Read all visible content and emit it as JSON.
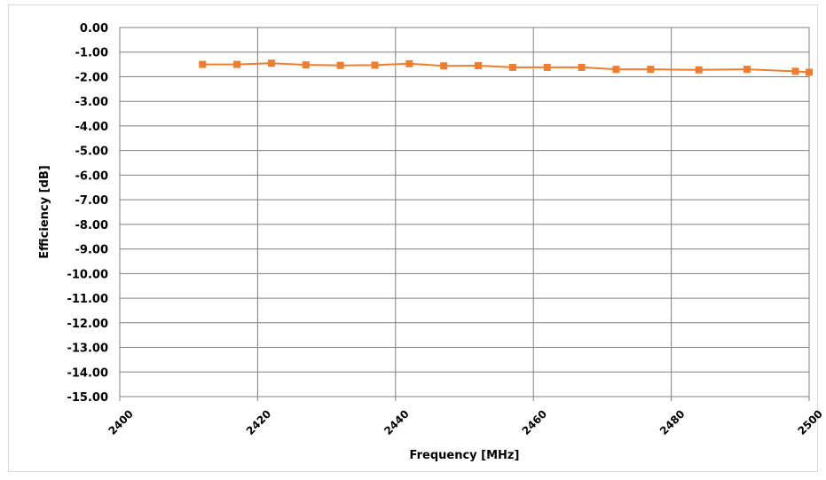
{
  "chart_data": {
    "type": "line",
    "title": "",
    "xlabel": "Frequency [MHz]",
    "ylabel": "Efficiency [dB]",
    "xlim": [
      2400,
      2500
    ],
    "ylim": [
      -15,
      0
    ],
    "x_ticks": [
      2400,
      2420,
      2440,
      2460,
      2480,
      2500
    ],
    "x_tick_labels": [
      "2400",
      "2420",
      "2440",
      "2460",
      "2480",
      "2500"
    ],
    "y_ticks": [
      0,
      -1,
      -2,
      -3,
      -4,
      -5,
      -6,
      -7,
      -8,
      -9,
      -10,
      -11,
      -12,
      -13,
      -14,
      -15
    ],
    "y_tick_labels": [
      "0.00",
      "-1.00",
      "-2.00",
      "-3.00",
      "-4.00",
      "-5.00",
      "-6.00",
      "-7.00",
      "-8.00",
      "-9.00",
      "-10.00",
      "-11.00",
      "-12.00",
      "-13.00",
      "-14.00",
      "-15.00"
    ],
    "grid": true,
    "series": [
      {
        "color": "#ed7d31",
        "marker": "square",
        "x": [
          2412,
          2417,
          2422,
          2427,
          2432,
          2437,
          2442,
          2447,
          2452,
          2457,
          2462,
          2467,
          2472,
          2477,
          2484,
          2491,
          2498,
          2500
        ],
        "y": [
          -1.5,
          -1.5,
          -1.45,
          -1.52,
          -1.54,
          -1.53,
          -1.47,
          -1.56,
          -1.55,
          -1.62,
          -1.62,
          -1.62,
          -1.7,
          -1.7,
          -1.72,
          -1.7,
          -1.78,
          -1.82
        ]
      }
    ]
  }
}
